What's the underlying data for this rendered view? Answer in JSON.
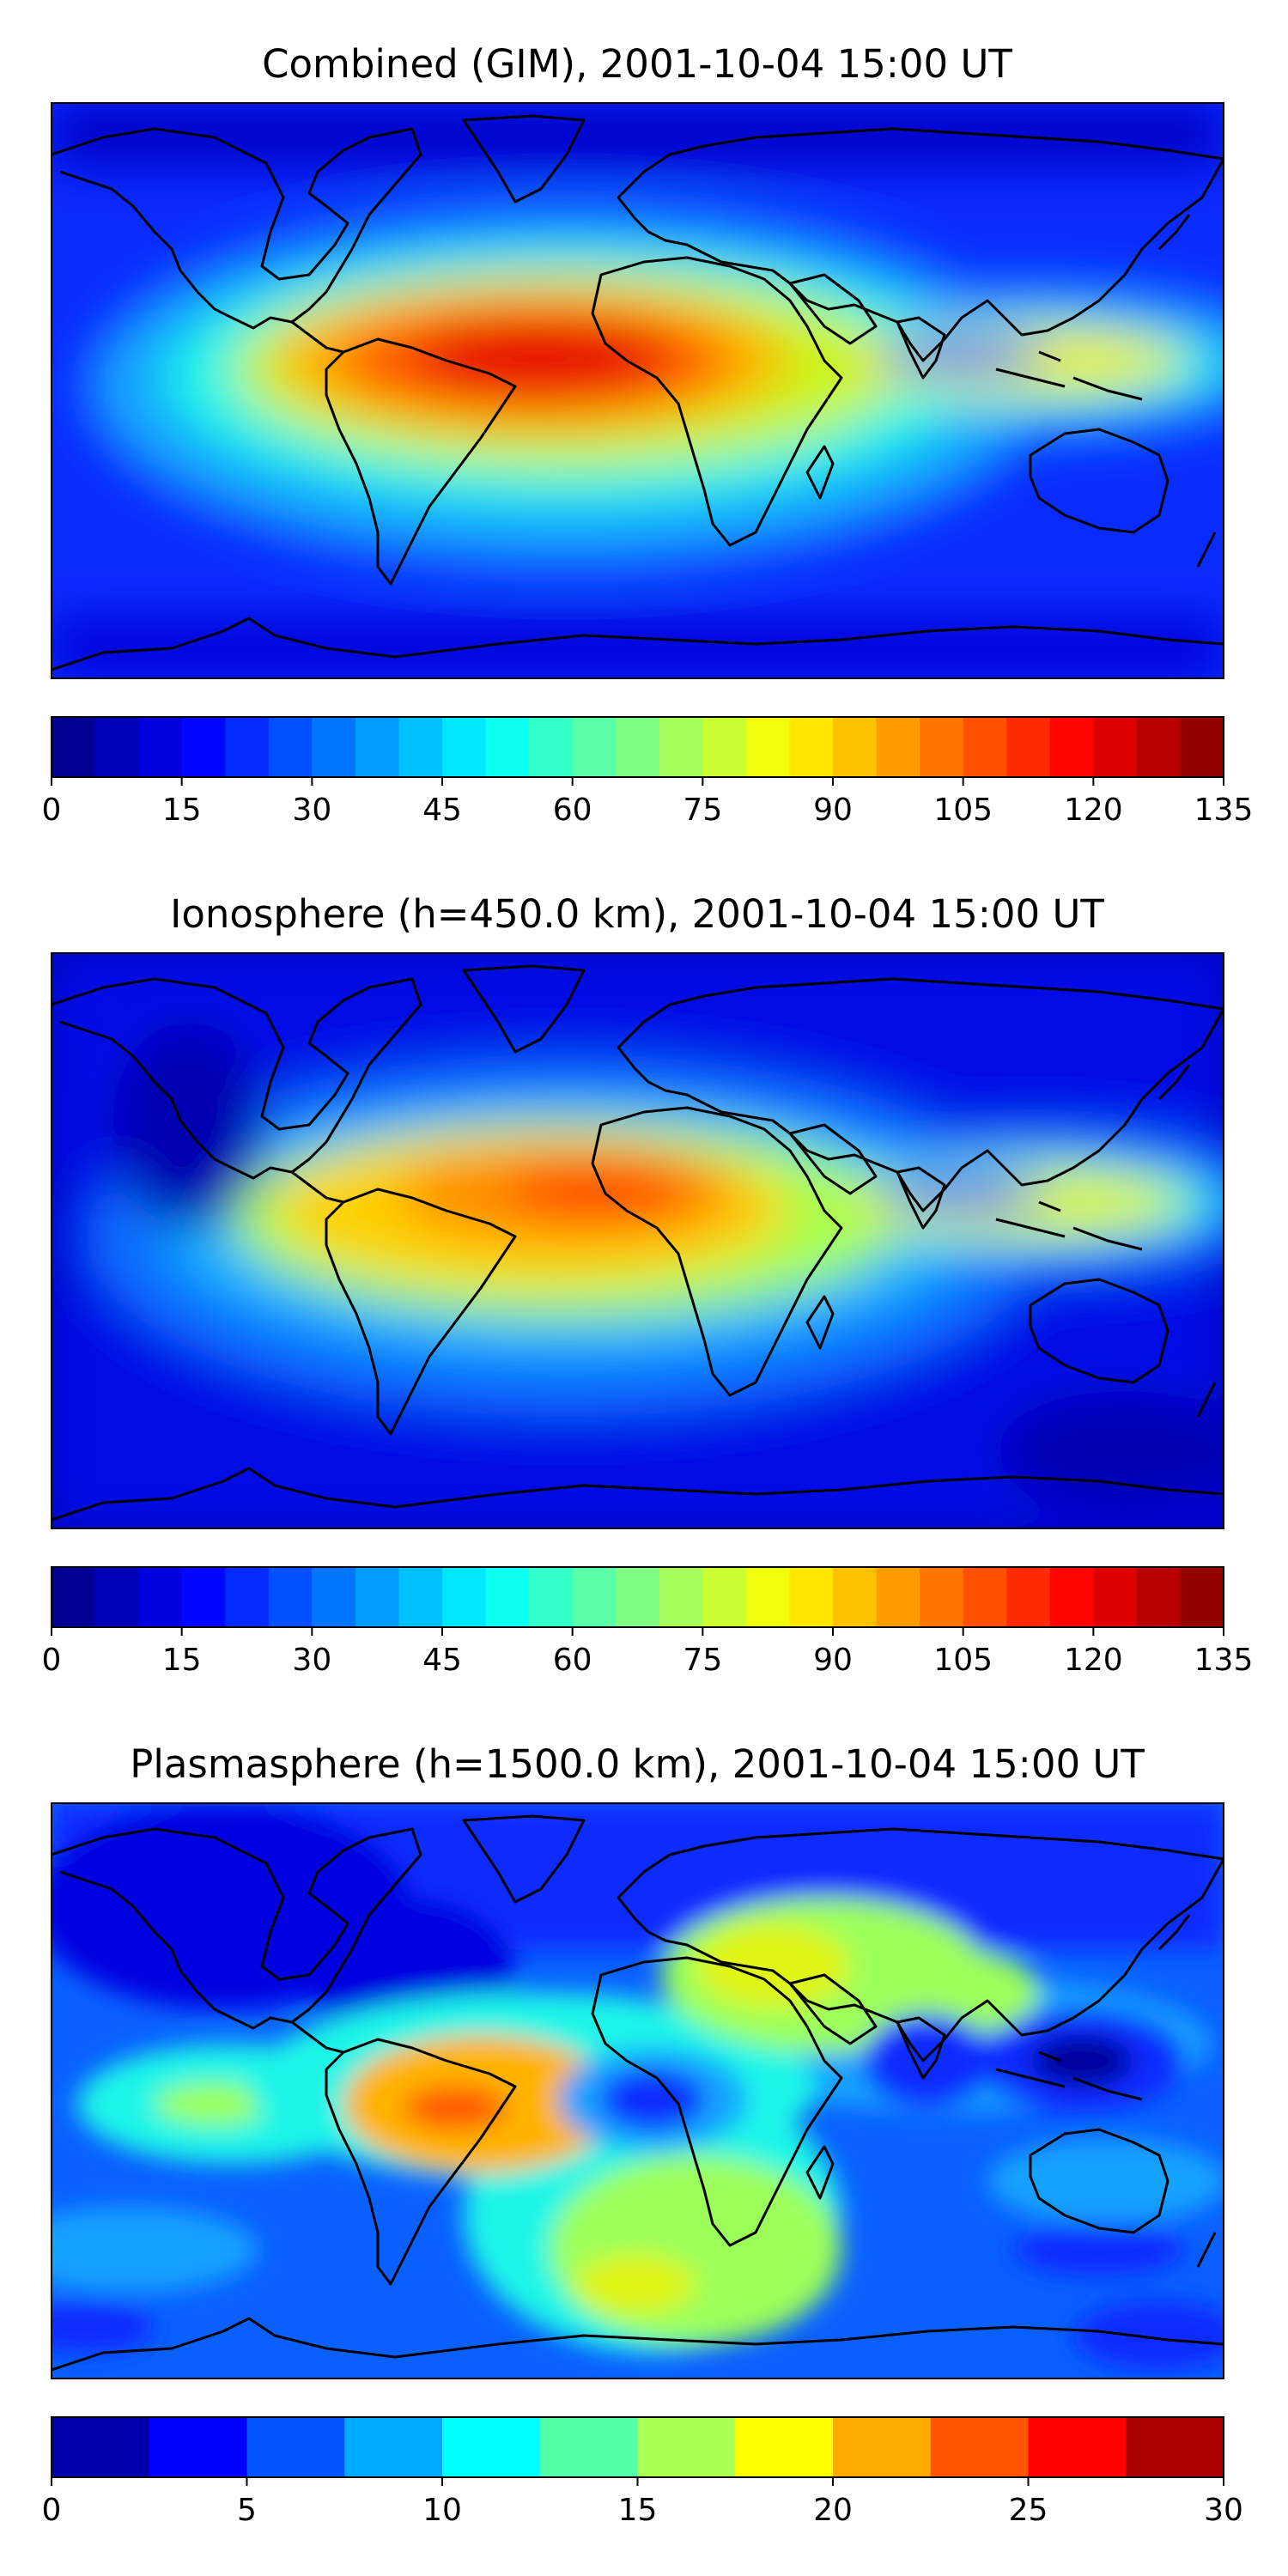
{
  "panels": [
    {
      "title": "Combined (GIM), 2001-10-04 15:00 UT",
      "colorbar": {
        "ticks": [
          "0",
          "15",
          "30",
          "45",
          "60",
          "75",
          "90",
          "105",
          "120",
          "135"
        ],
        "levels": 27,
        "max": 135
      },
      "field": "combined"
    },
    {
      "title": "Ionosphere  (h=450.0 km), 2001-10-04 15:00 UT",
      "colorbar": {
        "ticks": [
          "0",
          "15",
          "30",
          "45",
          "60",
          "75",
          "90",
          "105",
          "120",
          "135"
        ],
        "levels": 27,
        "max": 135
      },
      "field": "ionosphere"
    },
    {
      "title": "Plasmasphere (h=1500.0 km), 2001-10-04 15:00 UT",
      "colorbar": {
        "ticks": [
          "0",
          "5",
          "10",
          "15",
          "20",
          "25",
          "30"
        ],
        "levels": 12,
        "max": 30
      },
      "field": "plasmasphere"
    }
  ],
  "colors": {
    "jet_dark_blue": "#00007f",
    "jet_cyan": "#1ef5e8",
    "jet_yellow": "#e8ef14",
    "jet_dark_red": "#7f0000",
    "coastline": "#000000"
  }
}
